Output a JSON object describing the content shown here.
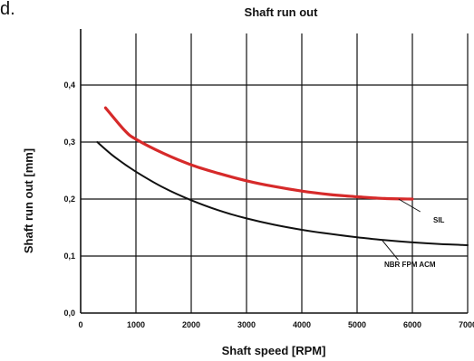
{
  "corner_text": "d.",
  "chart_data": {
    "type": "line",
    "title": "Shaft run out",
    "xlabel": "Shaft speed [RPM]",
    "ylabel": "Shaft run out [mm]",
    "xlim": [
      0,
      7000
    ],
    "ylim": [
      0,
      0.5
    ],
    "x_ticks": [
      0,
      1000,
      2000,
      3000,
      4000,
      5000,
      6000,
      7000
    ],
    "x_tick_labels": [
      "0",
      "1000",
      "2000",
      "3000",
      "4000",
      "5000",
      "6000",
      "7000"
    ],
    "y_ticks": [
      0.0,
      0.1,
      0.2,
      0.3,
      0.4
    ],
    "y_tick_labels": [
      "0,0",
      "0,1",
      "0,2",
      "0,3",
      "0,4"
    ],
    "grid": {
      "vertical": true,
      "horizontal": true
    },
    "series": [
      {
        "name": "SIL",
        "color": "#d62a2a",
        "x": [
          450,
          800,
          1000,
          1500,
          2000,
          2500,
          3000,
          3500,
          4000,
          4500,
          5000,
          5500,
          6000
        ],
        "y": [
          0.36,
          0.32,
          0.305,
          0.28,
          0.26,
          0.245,
          0.232,
          0.222,
          0.214,
          0.208,
          0.204,
          0.201,
          0.2
        ]
      },
      {
        "name": "NBR FPM ACM",
        "color": "#111111",
        "x": [
          300,
          600,
          1000,
          1500,
          2000,
          2500,
          3000,
          3500,
          4000,
          4500,
          5000,
          5500,
          6000,
          6500,
          7000
        ],
        "y": [
          0.3,
          0.275,
          0.248,
          0.22,
          0.198,
          0.18,
          0.166,
          0.155,
          0.146,
          0.139,
          0.133,
          0.128,
          0.124,
          0.121,
          0.119
        ]
      }
    ],
    "annotations": [
      {
        "text": "SIL",
        "series": "SIL",
        "anchor_x": 5750,
        "anchor_y": 0.2
      },
      {
        "text": "NBR FPM ACM",
        "series": "NBR FPM ACM",
        "anchor_x": 5450,
        "anchor_y": 0.128
      }
    ]
  }
}
